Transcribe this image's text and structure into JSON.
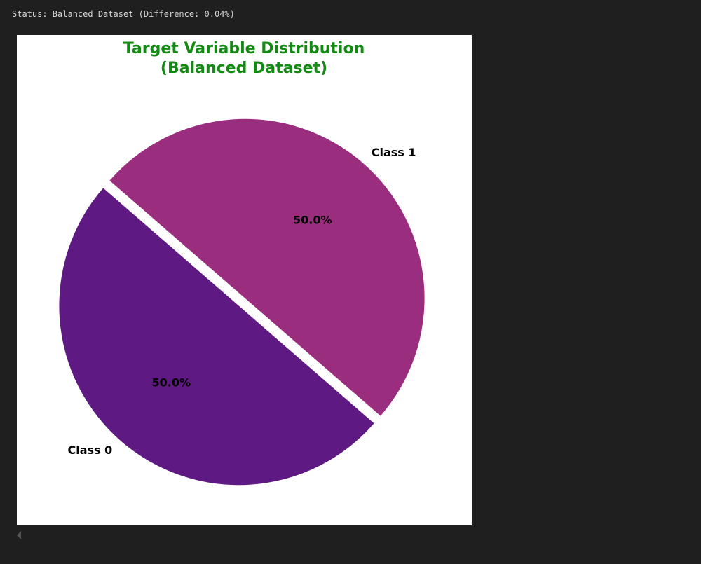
{
  "status": "Status: Balanced Dataset (Difference: 0.04%)",
  "chart_data": {
    "type": "pie",
    "title": [
      "Target Variable Distribution",
      "(Balanced Dataset)"
    ],
    "categories": [
      "Class 0",
      "Class 1"
    ],
    "values": [
      50,
      50
    ],
    "value_labels": [
      "50.0%",
      "50.0%"
    ],
    "colors": [
      "#5e1a82",
      "#9b2d7f"
    ]
  }
}
